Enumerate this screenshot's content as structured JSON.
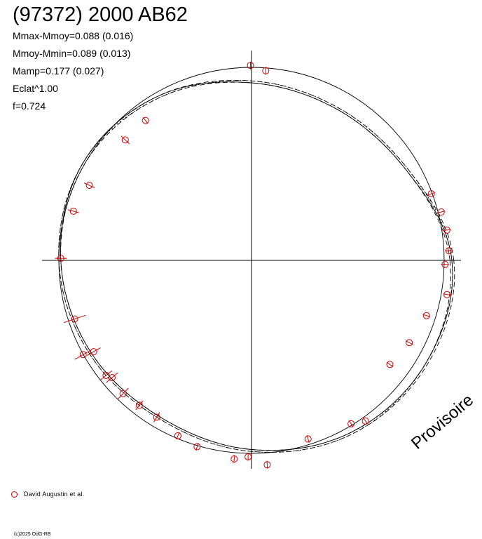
{
  "header": {
    "title": "(97372) 2000 AB62",
    "stats": [
      "Mmax-Mmoy=0.088 (0.016)",
      "Mmoy-Mmin=0.089 (0.013)",
      "Mamp=0.177 (0.027)",
      "Eclat^1.00",
      "f=0.724"
    ]
  },
  "legend": {
    "label": "David Augustin et al.",
    "marker_color": "#cc0000"
  },
  "watermark": "Provisoire",
  "copyright": "(c)2025 OdG-RB",
  "chart_data": {
    "type": "scatter",
    "projection": "polar",
    "title": "(97372) 2000 AB62",
    "xlabel": "",
    "ylabel": "",
    "grid": false,
    "legend_position": "bottom-left",
    "reference_circle": 1.0,
    "fitted_curves": [
      {
        "name": "",
        "style": "dashed",
        "radii": [
          1.05,
          0.94,
          0.91,
          0.93,
          0.98,
          1.01,
          1.0,
          0.97,
          0.95,
          0.99,
          1.04,
          1.06
        ]
      },
      {
        "name": "",
        "style": "dashed",
        "radii": [
          1.03,
          0.93,
          0.9,
          0.92,
          0.97,
          1.0,
          0.99,
          0.96,
          0.94,
          0.98,
          1.03,
          1.05
        ]
      },
      {
        "name": "",
        "style": "dotted",
        "radii": [
          1.04,
          0.94,
          0.91,
          0.93,
          0.97,
          1.01,
          1.0,
          0.97,
          0.95,
          0.99,
          1.04,
          1.05
        ]
      },
      {
        "name": "",
        "style": "solid",
        "radii": [
          1.04,
          0.93,
          0.9,
          0.92,
          0.98,
          1.01,
          0.99,
          0.96,
          0.94,
          0.98,
          1.03,
          1.05
        ]
      }
    ],
    "series": [
      {
        "name": "David Augustin et al.",
        "color": "#cc0000",
        "points": [
          {
            "angle": 90.3,
            "radius": 1.01,
            "err": 0.02
          },
          {
            "angle": 85.7,
            "radius": 0.985,
            "err": 0.02
          },
          {
            "angle": 127.2,
            "radius": 0.91,
            "err": 0.02
          },
          {
            "angle": 136.4,
            "radius": 0.905,
            "err": 0.03
          },
          {
            "angle": 155.2,
            "radius": 0.927,
            "err": 0.03
          },
          {
            "angle": 164.6,
            "radius": 0.959,
            "err": 0.03
          },
          {
            "angle": 179.4,
            "radius": 0.99,
            "err": 0.03
          },
          {
            "angle": 198.3,
            "radius": 0.967,
            "err": 0.06
          },
          {
            "angle": 209.2,
            "radius": 1.001,
            "err": 0.05
          },
          {
            "angle": 210.0,
            "radius": 0.946,
            "err": 0.04
          },
          {
            "angle": 218.3,
            "radius": 0.962,
            "err": 0.04
          },
          {
            "angle": 220.0,
            "radius": 0.945,
            "err": 0.04
          },
          {
            "angle": 226.0,
            "radius": 0.96,
            "err": 0.04
          },
          {
            "angle": 232.2,
            "radius": 0.95,
            "err": 0.03
          },
          {
            "angle": 238.8,
            "radius": 0.95,
            "err": 0.03
          },
          {
            "angle": 247.2,
            "radius": 0.986,
            "err": 0.02
          },
          {
            "angle": 253.7,
            "radius": 1.006,
            "err": 0.02
          },
          {
            "angle": 265.0,
            "radius": 1.033,
            "err": 0.02
          },
          {
            "angle": 269.0,
            "radius": 1.018,
            "err": 0.02
          },
          {
            "angle": 274.4,
            "radius": 1.062,
            "err": 0.02
          },
          {
            "angle": 287.6,
            "radius": 0.971,
            "err": 0.02
          },
          {
            "angle": 301.4,
            "radius": 0.992,
            "err": 0.02
          },
          {
            "angle": 305.4,
            "radius": 1.021,
            "err": 0.02
          },
          {
            "angle": 323.1,
            "radius": 0.898,
            "err": 0.02
          },
          {
            "angle": 332.5,
            "radius": 0.923,
            "err": 0.02
          },
          {
            "angle": 342.5,
            "radius": 0.952,
            "err": 0.02
          },
          {
            "angle": 350.1,
            "radius": 1.03,
            "err": 0.02
          },
          {
            "angle": 358.8,
            "radius": 1.005,
            "err": 0.02
          },
          {
            "angle": 2.8,
            "radius": 1.026,
            "err": 0.02
          },
          {
            "angle": 8.8,
            "radius": 1.026,
            "err": 0.02
          },
          {
            "angle": 14.3,
            "radius": 1.016,
            "err": 0.02
          },
          {
            "angle": 20.3,
            "radius": 0.995,
            "err": 0.02
          }
        ]
      }
    ]
  }
}
